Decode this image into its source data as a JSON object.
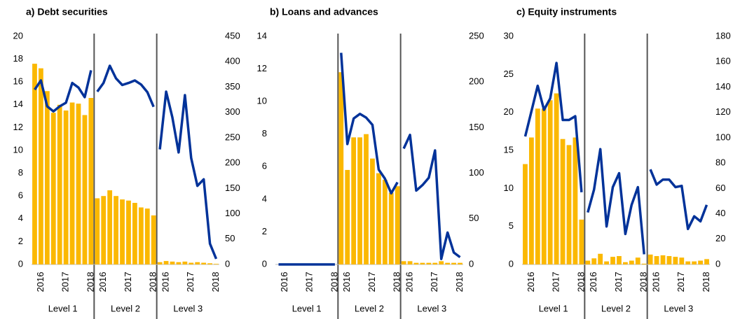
{
  "chart_data": [
    {
      "type": "bar_line",
      "title": "a) Debt securities",
      "groups": [
        "Level 1",
        "Level 2",
        "Level 3"
      ],
      "categories": [
        null,
        "2016",
        null,
        null,
        null,
        "2017",
        null,
        null,
        null,
        "2018",
        null,
        "2016",
        null,
        null,
        null,
        "2017",
        null,
        null,
        null,
        "2018",
        null,
        "2016",
        null,
        null,
        null,
        "2017",
        null,
        null,
        null,
        "2018"
      ],
      "series": [
        {
          "color": "#fbb800",
          "values": [
            17.6,
            17.2,
            15.2,
            13.3,
            14.0,
            13.5,
            14.2,
            14.1,
            13.1,
            14.6,
            5.8,
            6.0,
            6.5,
            6.0,
            5.7,
            5.6,
            5.4,
            5.0,
            4.9,
            4.3,
            0.2,
            0.3,
            0.25,
            0.2,
            0.25,
            0.15,
            0.2,
            0.15,
            0.1,
            0.05
          ]
        },
        {
          "color": "#003299",
          "axis": "y2",
          "values": [
            345,
            363,
            312,
            302,
            312,
            319,
            358,
            349,
            330,
            383,
            341,
            358,
            392,
            367,
            354,
            358,
            363,
            355,
            340,
            311,
            227,
            341,
            290,
            221,
            334,
            210,
            155,
            168,
            41,
            11
          ]
        }
      ],
      "ylim": [
        0,
        20
      ],
      "yticks": [
        0,
        2,
        4,
        6,
        8,
        10,
        12,
        14,
        16,
        18,
        20
      ],
      "y2lim": [
        0,
        450
      ],
      "y2ticks": [
        0,
        50,
        100,
        150,
        200,
        250,
        300,
        350,
        400,
        450
      ]
    },
    {
      "type": "bar_line",
      "title": "b) Loans and advances",
      "groups": [
        "Level 1",
        "Level 2",
        "Level 3"
      ],
      "categories": [
        null,
        "2016",
        null,
        null,
        null,
        "2017",
        null,
        null,
        null,
        "2018",
        null,
        "2016",
        null,
        null,
        null,
        "2017",
        null,
        null,
        null,
        "2018",
        null,
        "2016",
        null,
        null,
        null,
        "2017",
        null,
        null,
        null,
        "2018"
      ],
      "series": [
        {
          "color": "#fbb800",
          "values": [
            0,
            0,
            0,
            0,
            0,
            0,
            0,
            0,
            0,
            0,
            11.8,
            5.8,
            7.8,
            7.8,
            8.0,
            6.5,
            5.6,
            5.2,
            4.4,
            4.8,
            0.2,
            0.2,
            0.1,
            0.1,
            0.1,
            0.1,
            0.2,
            0.1,
            0.1,
            0.1
          ]
        },
        {
          "color": "#003299",
          "axis": "y2",
          "values": [
            0,
            0,
            0,
            0,
            0,
            0,
            0,
            0,
            0,
            0,
            232,
            132,
            160,
            165,
            161,
            153,
            104,
            94,
            78,
            90,
            127,
            142,
            81,
            87,
            95,
            125,
            6,
            35,
            13,
            8
          ]
        }
      ],
      "ylim": [
        0,
        14
      ],
      "yticks": [
        0,
        2,
        4,
        6,
        8,
        10,
        12,
        14
      ],
      "y2lim": [
        0,
        250
      ],
      "y2ticks": [
        0,
        50,
        100,
        150,
        200,
        250
      ]
    },
    {
      "type": "bar_line",
      "title": "c) Equity instruments",
      "groups": [
        "Level 1",
        "Level 2",
        "Level 3"
      ],
      "categories": [
        null,
        "2016",
        null,
        null,
        null,
        "2017",
        null,
        null,
        null,
        "2018",
        null,
        "2016",
        null,
        null,
        null,
        "2017",
        null,
        null,
        null,
        "2018",
        null,
        "2016",
        null,
        null,
        null,
        "2017",
        null,
        null,
        null,
        "2018"
      ],
      "series": [
        {
          "color": "#fbb800",
          "values": [
            13.2,
            16.7,
            20.5,
            20.5,
            21.6,
            22.5,
            16.5,
            15.7,
            16.7,
            5.9,
            0.5,
            0.8,
            1.4,
            0.4,
            1.0,
            1.1,
            0.3,
            0.5,
            0.9,
            0.1,
            1.3,
            1.1,
            1.2,
            1.1,
            1.0,
            0.9,
            0.4,
            0.4,
            0.5,
            0.7
          ]
        },
        {
          "color": "#003299",
          "axis": "y2",
          "values": [
            101,
            121,
            141,
            122,
            131,
            159,
            114,
            114,
            117,
            57,
            41,
            59,
            91,
            30,
            61,
            72,
            24,
            47,
            61,
            8,
            75,
            63,
            67,
            67,
            61,
            62,
            28,
            38,
            34,
            47
          ]
        }
      ],
      "ylim": [
        0,
        30
      ],
      "yticks": [
        0,
        5,
        10,
        15,
        20,
        25,
        30
      ],
      "y2lim": [
        0,
        180
      ],
      "y2ticks": [
        0,
        20,
        40,
        60,
        80,
        100,
        120,
        140,
        160,
        180
      ]
    }
  ]
}
